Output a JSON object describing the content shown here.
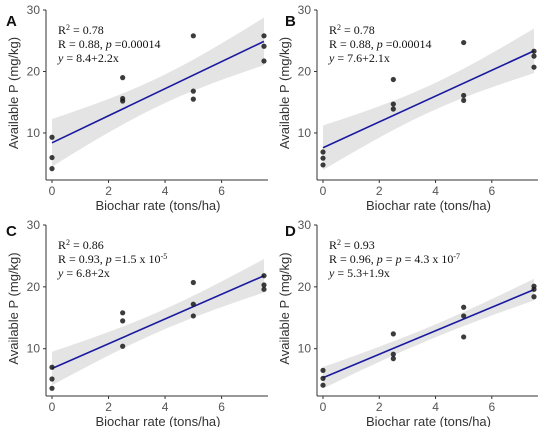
{
  "chart_data": [
    {
      "type": "scatter",
      "panel": "A",
      "xlabel": "Biochar rate (tons/ha)",
      "ylabel": "Available P (mg/kg)",
      "xlim": [
        0,
        7.5
      ],
      "ylim": [
        3,
        30
      ],
      "xticks": [
        0,
        2,
        4,
        6
      ],
      "yticks": [
        10,
        20,
        30
      ],
      "points": [
        [
          0,
          4.2
        ],
        [
          0,
          6.0
        ],
        [
          0,
          9.3
        ],
        [
          2.5,
          15.2
        ],
        [
          2.5,
          15.6
        ],
        [
          2.5,
          19.0
        ],
        [
          5,
          15.5
        ],
        [
          5,
          16.8
        ],
        [
          5,
          25.8
        ],
        [
          7.5,
          21.7
        ],
        [
          7.5,
          24.1
        ],
        [
          7.5,
          25.8
        ]
      ],
      "fit": {
        "intercept": 8.4,
        "slope": 2.2
      },
      "annotation": {
        "line1": {
          "a": "R",
          "sup": "2",
          "b": " = 0.78"
        },
        "line2": {
          "a": "R = 0.88, ",
          "i": "p",
          "b": " =0.00014"
        },
        "line3": {
          "i": "y",
          "b": " = 8.4+2.2x"
        }
      }
    },
    {
      "type": "scatter",
      "panel": "B",
      "xlabel": "Biochar rate (tons/ha)",
      "ylabel": "Available P (mg/kg)",
      "xlim": [
        0,
        7.5
      ],
      "ylim": [
        3,
        30
      ],
      "xticks": [
        0,
        2,
        4,
        6
      ],
      "yticks": [
        10,
        20,
        30
      ],
      "points": [
        [
          0,
          4.8
        ],
        [
          0,
          5.9
        ],
        [
          0,
          6.9
        ],
        [
          2.5,
          13.9
        ],
        [
          2.5,
          14.7
        ],
        [
          2.5,
          18.7
        ],
        [
          5,
          15.3
        ],
        [
          5,
          16.1
        ],
        [
          5,
          24.7
        ],
        [
          7.5,
          20.7
        ],
        [
          7.5,
          22.5
        ],
        [
          7.5,
          23.3
        ]
      ],
      "fit": {
        "intercept": 7.6,
        "slope": 2.1
      },
      "annotation": {
        "line1": {
          "a": "R",
          "sup": "2",
          "b": " = 0.78"
        },
        "line2": {
          "a": "R = 0.88, ",
          "i": "p",
          "b": " =0.00014"
        },
        "line3": {
          "i": "y",
          "b": " = 7.6+2.1x"
        }
      }
    },
    {
      "type": "scatter",
      "panel": "C",
      "xlabel": "Biochar rate (tons/ha)",
      "ylabel": "Available P (mg/kg)",
      "xlim": [
        0,
        7.5
      ],
      "ylim": [
        3,
        30
      ],
      "xticks": [
        0,
        2,
        4,
        6
      ],
      "yticks": [
        10,
        20,
        30
      ],
      "points": [
        [
          0,
          3.6
        ],
        [
          0,
          5.1
        ],
        [
          0,
          7.0
        ],
        [
          2.5,
          10.4
        ],
        [
          2.5,
          14.5
        ],
        [
          2.5,
          15.8
        ],
        [
          5,
          15.3
        ],
        [
          5,
          17.2
        ],
        [
          5,
          20.7
        ],
        [
          7.5,
          19.6
        ],
        [
          7.5,
          20.3
        ],
        [
          7.5,
          21.8
        ]
      ],
      "fit": {
        "intercept": 6.8,
        "slope": 2.0
      },
      "annotation": {
        "line0": {
          "a": "R",
          "sup": "2",
          "b": " = 0.86"
        },
        "line2": {
          "a": "R = 0.93, ",
          "i": "p",
          "b": " =1.5 x 10",
          "sup": "-5"
        },
        "line3": {
          "i": "y",
          "b": " = 6.8+2x"
        }
      }
    },
    {
      "type": "scatter",
      "panel": "D",
      "xlabel": "Biochar rate (tons/ha)",
      "ylabel": "Available P (mg/kg)",
      "xlim": [
        0,
        7.5
      ],
      "ylim": [
        3,
        30
      ],
      "xticks": [
        0,
        2,
        4,
        6
      ],
      "yticks": [
        10,
        20,
        30
      ],
      "points": [
        [
          0,
          4.1
        ],
        [
          0,
          5.2
        ],
        [
          0,
          6.5
        ],
        [
          2.5,
          8.4
        ],
        [
          2.5,
          9.1
        ],
        [
          2.5,
          12.4
        ],
        [
          5,
          11.9
        ],
        [
          5,
          15.3
        ],
        [
          5,
          16.7
        ],
        [
          7.5,
          18.4
        ],
        [
          7.5,
          19.6
        ],
        [
          7.5,
          20.1
        ]
      ],
      "fit": {
        "intercept": 5.3,
        "slope": 1.9
      },
      "annotation": {
        "line1": {
          "a": "R",
          "sup": "2",
          "b": " = 0.93"
        },
        "line2": {
          "a": "R = 0.96, ",
          "i": "p",
          "b": " = ",
          "i2": "p",
          "b2": " = 4.3 x 10",
          "sup": "-7"
        },
        "line3": {
          "i": "y",
          "b": " = 5.3+1.9x"
        }
      }
    }
  ]
}
